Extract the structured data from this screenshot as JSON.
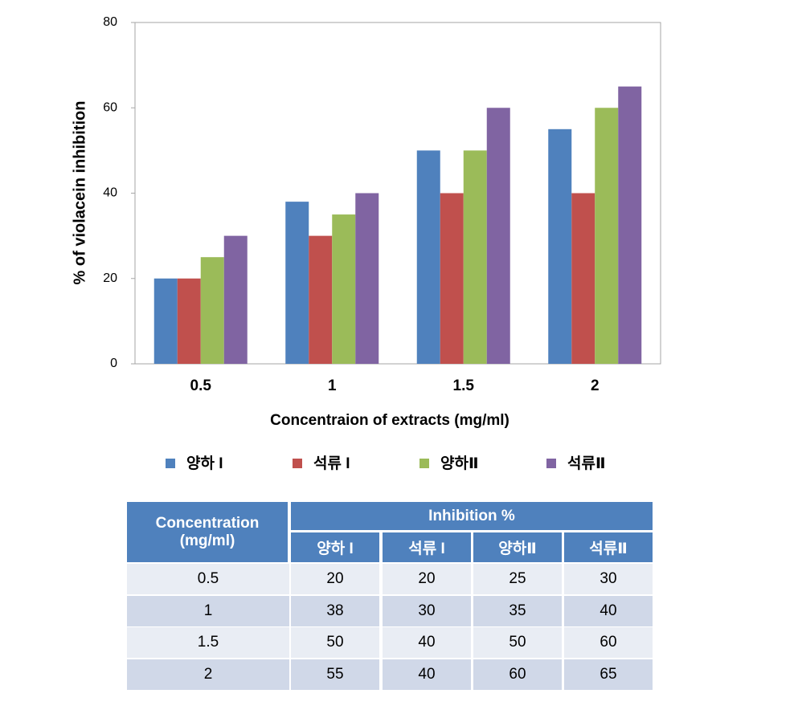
{
  "chart_data": {
    "type": "bar",
    "xlabel": "Concentraion of extracts (mg/ml)",
    "ylabel": "% of violacein inhibition",
    "categories": [
      "0.5",
      "1",
      "1.5",
      "2"
    ],
    "series": [
      {
        "name": "양하 I",
        "color": "#4f81bd",
        "values": [
          20,
          38,
          50,
          55
        ]
      },
      {
        "name": "석류 I",
        "color": "#c0504d",
        "values": [
          20,
          30,
          40,
          40
        ]
      },
      {
        "name": "양하Ⅱ",
        "color": "#9bbb59",
        "values": [
          25,
          35,
          50,
          60
        ]
      },
      {
        "name": "석류Ⅱ",
        "color": "#8064a2",
        "values": [
          30,
          40,
          60,
          65
        ]
      }
    ],
    "ylim": [
      0,
      80
    ],
    "yticks": [
      0,
      20,
      40,
      60,
      80
    ],
    "grid": false,
    "legend": "bottom"
  },
  "table": {
    "first_header": "Concentration (mg/ml)",
    "group_header": "Inhibition %"
  }
}
